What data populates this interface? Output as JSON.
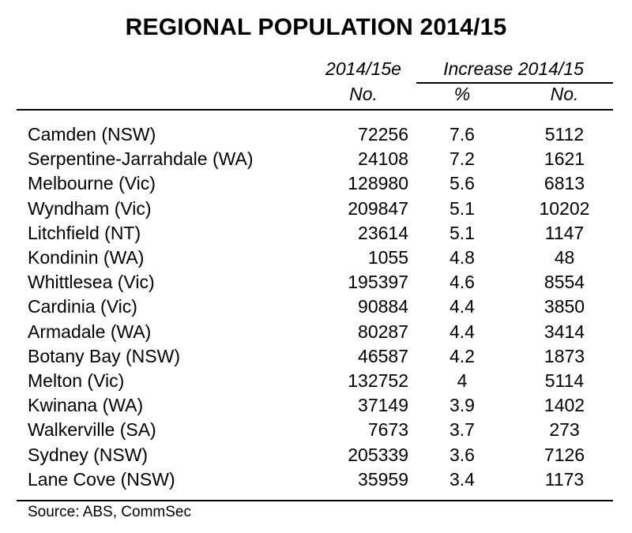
{
  "chart_data": {
    "type": "table",
    "title": "REGIONAL POPULATION 2014/15",
    "headers": {
      "pop_top": "2014/15e",
      "pop_unit": "No.",
      "inc_group": "Increase 2014/15",
      "pct_unit": "%",
      "inc_unit": "No."
    },
    "rows": [
      {
        "region": "Camden (NSW)",
        "pop": "72256",
        "pct": "7.6",
        "inc": "5112"
      },
      {
        "region": "Serpentine-Jarrahdale (WA)",
        "pop": "24108",
        "pct": "7.2",
        "inc": "1621"
      },
      {
        "region": "Melbourne (Vic)",
        "pop": "128980",
        "pct": "5.6",
        "inc": "6813"
      },
      {
        "region": "Wyndham (Vic)",
        "pop": "209847",
        "pct": "5.1",
        "inc": "10202"
      },
      {
        "region": "Litchfield (NT)",
        "pop": "23614",
        "pct": "5.1",
        "inc": "1147"
      },
      {
        "region": "Kondinin (WA)",
        "pop": "1055",
        "pct": "4.8",
        "inc": "48"
      },
      {
        "region": "Whittlesea (Vic)",
        "pop": "195397",
        "pct": "4.6",
        "inc": "8554"
      },
      {
        "region": "Cardinia (Vic)",
        "pop": "90884",
        "pct": "4.4",
        "inc": "3850"
      },
      {
        "region": "Armadale (WA)",
        "pop": "80287",
        "pct": "4.4",
        "inc": "3414"
      },
      {
        "region": "Botany Bay (NSW)",
        "pop": "46587",
        "pct": "4.2",
        "inc": "1873"
      },
      {
        "region": "Melton (Vic)",
        "pop": "132752",
        "pct": "4",
        "inc": "5114"
      },
      {
        "region": "Kwinana (WA)",
        "pop": "37149",
        "pct": "3.9",
        "inc": "1402"
      },
      {
        "region": "Walkerville (SA)",
        "pop": "7673",
        "pct": "3.7",
        "inc": "273"
      },
      {
        "region": "Sydney (NSW)",
        "pop": "205339",
        "pct": "3.6",
        "inc": "7126"
      },
      {
        "region": "Lane Cove (NSW)",
        "pop": "35959",
        "pct": "3.4",
        "inc": "1173"
      }
    ],
    "source": "Source: ABS, CommSec"
  }
}
